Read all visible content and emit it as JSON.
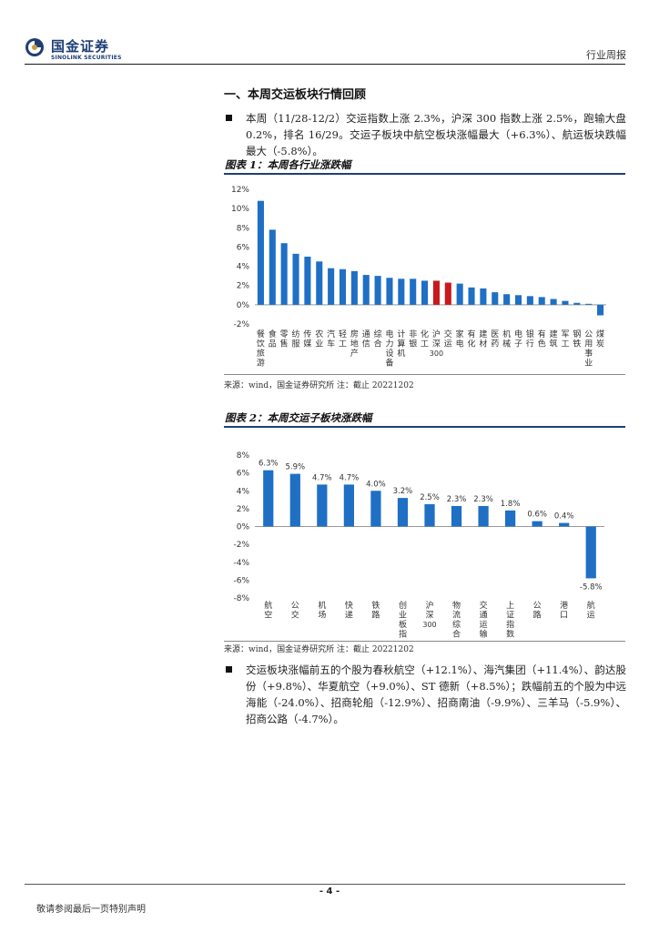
{
  "header": {
    "logo_cn": "国金证券",
    "logo_en": "SINOLINK SECURITIES",
    "report_type": "行业周报"
  },
  "section_title": "一、本周交运板块行情回顾",
  "paragraphs": [
    "本周（11/28-12/2）交运指数上涨 2.3%，沪深 300 指数上涨 2.5%，跑输大盘 0.2%，排名 16/29。交运子板块中航空板块涨幅最大（+6.3%）、航运板块跌幅最大（-5.8%）。",
    "交运板块涨幅前五的个股为春秋航空（+12.1%）、海汽集团（+11.4%）、韵达股份（+9.8%）、华夏航空（+9.0%）、ST 德新（+8.5%）；跌幅前五的个股为中远海能（-24.0%）、招商轮船（-12.9%）、招商南油（-9.9%）、三羊马（-5.9%）、招商公路（-4.7%）。"
  ],
  "figure1": {
    "title": "图表 1：本周各行业涨跌幅",
    "source": "来源：wind，国金证券研究所 注：截止 20221202"
  },
  "figure2": {
    "title": "图表 2：本周交运子板块涨跌幅",
    "source": "来源：wind，国金证券研究所 注：截止 20221202"
  },
  "chart_data": [
    {
      "type": "bar",
      "title": "本周各行业涨跌幅",
      "categories": [
        "餐饮旅游",
        "食品",
        "零售",
        "纺服",
        "传媒",
        "农业",
        "汽车",
        "轻工",
        "房地产",
        "通信",
        "综合",
        "电力设备",
        "计算机",
        "非银",
        "化工",
        "沪深300",
        "交运",
        "家电",
        "有化",
        "建材",
        "医药",
        "机械",
        "电子",
        "银行",
        "有色",
        "建筑",
        "军工",
        "钢铁",
        "公用事业",
        "煤炭"
      ],
      "values": [
        10.8,
        7.8,
        6.4,
        5.3,
        5.0,
        4.5,
        3.8,
        3.7,
        3.5,
        3.1,
        3.0,
        2.8,
        2.7,
        2.7,
        2.5,
        2.5,
        2.3,
        2.2,
        1.8,
        1.7,
        1.3,
        1.1,
        1.0,
        0.9,
        0.8,
        0.6,
        0.4,
        0.2,
        0.1,
        -1.1
      ],
      "highlight": [
        "沪深300",
        "交运"
      ],
      "ylim": [
        -2,
        12
      ],
      "yticks": [
        "12%",
        "10%",
        "8%",
        "6%",
        "4%",
        "2%",
        "0%",
        "-2%"
      ],
      "colors": {
        "bar": "#1f6fc5",
        "highlight": "#c8191f"
      }
    },
    {
      "type": "bar",
      "title": "本周交运子板块涨跌幅",
      "categories": [
        "航空",
        "公交",
        "机场",
        "快递",
        "铁路",
        "创业板指",
        "沪深300",
        "物流综合",
        "交通运输",
        "上证指数",
        "公路",
        "港口",
        "航运"
      ],
      "values": [
        6.3,
        5.9,
        4.7,
        4.7,
        4.0,
        3.2,
        2.5,
        2.3,
        2.3,
        1.8,
        0.6,
        0.4,
        -5.8
      ],
      "value_labels": [
        "6.3%",
        "5.9%",
        "4.7%",
        "4.7%",
        "4.0%",
        "3.2%",
        "2.5%",
        "2.3%",
        "2.3%",
        "1.8%",
        "0.6%",
        "0.4%",
        "-5.8%"
      ],
      "ylim": [
        -8,
        8
      ],
      "yticks": [
        "8%",
        "6%",
        "4%",
        "2%",
        "0%",
        "-2%",
        "-4%",
        "-6%",
        "-8%"
      ],
      "colors": {
        "bar": "#1f6fc5"
      }
    }
  ],
  "footer": {
    "page": "- 4 -",
    "disclaimer": "敬请参阅最后一页特别声明"
  }
}
